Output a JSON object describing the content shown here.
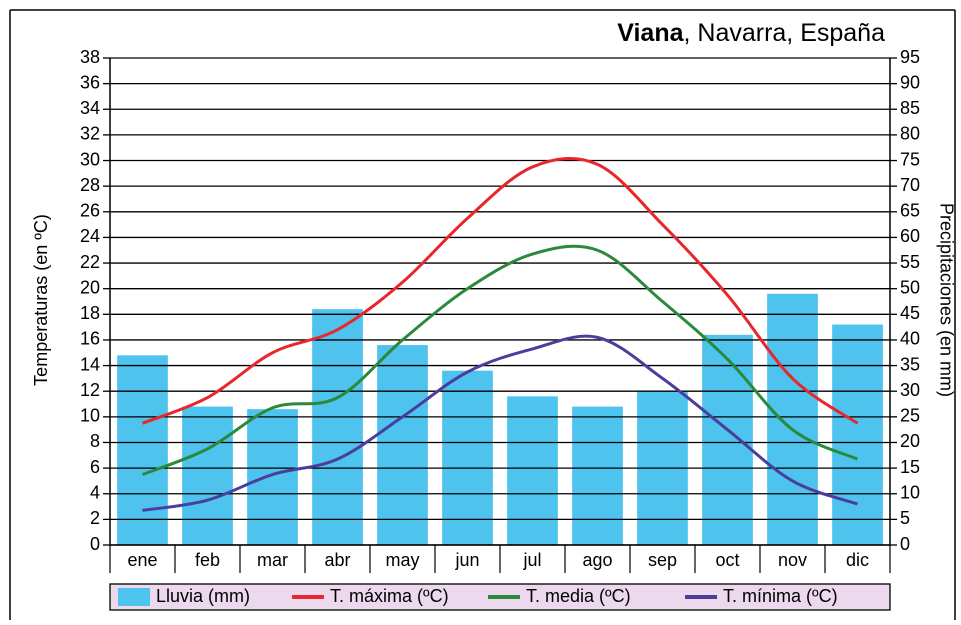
{
  "chart_data": {
    "type": "bar-line",
    "title": {
      "bold": "Viana",
      "rest": ", Navarra, España"
    },
    "y_label": "Temperaturas (en ºC)",
    "y2_label": "Precipitaciones (en mm)",
    "categories": [
      "ene",
      "feb",
      "mar",
      "abr",
      "may",
      "jun",
      "jul",
      "ago",
      "sep",
      "oct",
      "nov",
      "dic"
    ],
    "ylim": [
      0,
      38
    ],
    "yticks": [
      0,
      2,
      4,
      6,
      8,
      10,
      12,
      14,
      16,
      18,
      20,
      22,
      24,
      26,
      28,
      30,
      32,
      34,
      36,
      38
    ],
    "y2lim": [
      0,
      95
    ],
    "y2ticks": [
      0,
      5,
      10,
      15,
      20,
      25,
      30,
      35,
      40,
      45,
      50,
      55,
      60,
      65,
      70,
      75,
      80,
      85,
      90,
      95
    ],
    "grid": true,
    "series": [
      {
        "name": "Lluvia (mm)",
        "type": "bar",
        "axis": "y2",
        "color": "#4dc3ee",
        "values": [
          37,
          27,
          26.5,
          46,
          39,
          34,
          29,
          27,
          30,
          41,
          49,
          43
        ]
      },
      {
        "name": "T. máxima (ºC)",
        "type": "line",
        "color": "#e8262b",
        "values": [
          9.5,
          11.5,
          15,
          16.8,
          20.5,
          25.5,
          29.5,
          29.7,
          25,
          19.5,
          13,
          9.5
        ]
      },
      {
        "name": "T. media (ºC)",
        "type": "line",
        "color": "#2a8a3a",
        "values": [
          5.5,
          7.5,
          10.7,
          11.5,
          16,
          20,
          22.7,
          23,
          19,
          14.5,
          9,
          6.7
        ]
      },
      {
        "name": "T. mínima (ºC)",
        "type": "line",
        "color": "#4b3d9e",
        "values": [
          2.7,
          3.5,
          5.5,
          6.7,
          10,
          13.5,
          15.3,
          16.2,
          13,
          9,
          5,
          3.2
        ]
      }
    ]
  }
}
